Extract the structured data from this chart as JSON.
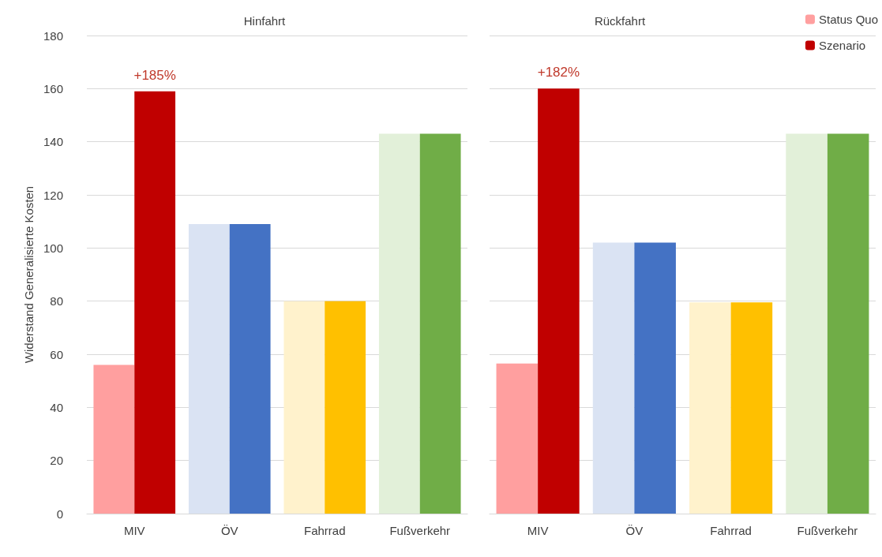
{
  "chart_data": [
    {
      "type": "bar",
      "title": "Hinfahrt",
      "ylabel": "Widerstand Generalisierte Kosten",
      "categories": [
        "MIV",
        "ÖV",
        "Fahrrad",
        "Fußverkehr"
      ],
      "series": [
        {
          "color": "#ff9f9f",
          "colors": [
            "#ff9f9f",
            "#dae3f3",
            "#fff2cc",
            "#e2f0d9"
          ],
          "values": [
            56,
            109,
            80,
            143
          ]
        },
        {
          "color": "#c00000",
          "colors": [
            "#c00000",
            "#4472c4",
            "#ffc000",
            "#70ad47"
          ],
          "values": [
            159,
            109,
            80,
            143
          ]
        }
      ],
      "ylim": [
        0,
        180
      ],
      "yticks": [
        0,
        20,
        40,
        60,
        80,
        100,
        120,
        140,
        160,
        180
      ],
      "grid": "y",
      "legend": false,
      "annotations": [
        {
          "text": "+185%",
          "x": "MIV",
          "y": 159
        }
      ]
    },
    {
      "type": "bar",
      "title": "Rückfahrt",
      "categories": [
        "MIV",
        "ÖV",
        "Fahrrad",
        "Fußverkehr"
      ],
      "series": [
        {
          "name": "Status Quo",
          "color": "#ff9f9f",
          "colors": [
            "#ff9f9f",
            "#dae3f3",
            "#fff2cc",
            "#e2f0d9"
          ],
          "values": [
            56.5,
            102,
            79.5,
            143
          ]
        },
        {
          "name": "Szenario",
          "color": "#c00000",
          "colors": [
            "#c00000",
            "#4472c4",
            "#ffc000",
            "#70ad47"
          ],
          "values": [
            160,
            102,
            79.5,
            143
          ]
        }
      ],
      "ylim": [
        0,
        180
      ],
      "yticks": [
        0,
        20,
        40,
        60,
        80,
        100,
        120,
        140,
        160,
        180
      ],
      "grid": "y",
      "legend": "top right",
      "tick_labels": "x",
      "annotations": [
        {
          "text": "+182%",
          "x": "MIV",
          "y": 160
        }
      ]
    }
  ]
}
